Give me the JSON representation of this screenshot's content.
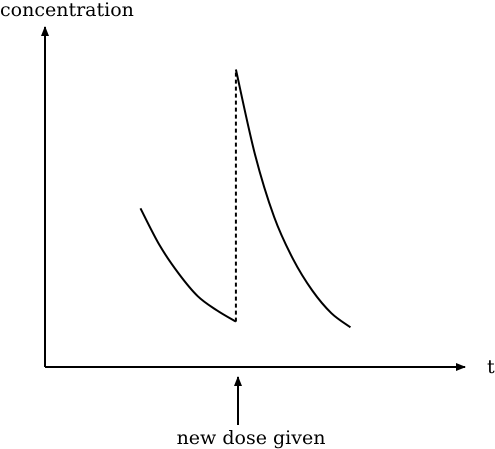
{
  "chart_data": {
    "type": "line",
    "title": "",
    "ylabel": "concentration",
    "xlabel": "t",
    "annotation": "new dose given",
    "dose_time": 10,
    "xlim": [
      0,
      22
    ],
    "ylim": [
      0,
      12
    ],
    "grid": false,
    "series": [
      {
        "x": [
          5,
          6,
          7,
          8,
          9,
          10
        ],
        "values": [
          5.6,
          4.3,
          3.3,
          2.5,
          2.0,
          1.6
        ]
      },
      {
        "x": [
          10,
          11,
          12,
          13,
          14,
          15,
          16
        ],
        "values": [
          10.5,
          7.5,
          5.3,
          3.8,
          2.7,
          1.9,
          1.4
        ]
      }
    ],
    "dose_jump": {
      "x": 10,
      "from": 1.6,
      "to": 10.5
    }
  }
}
